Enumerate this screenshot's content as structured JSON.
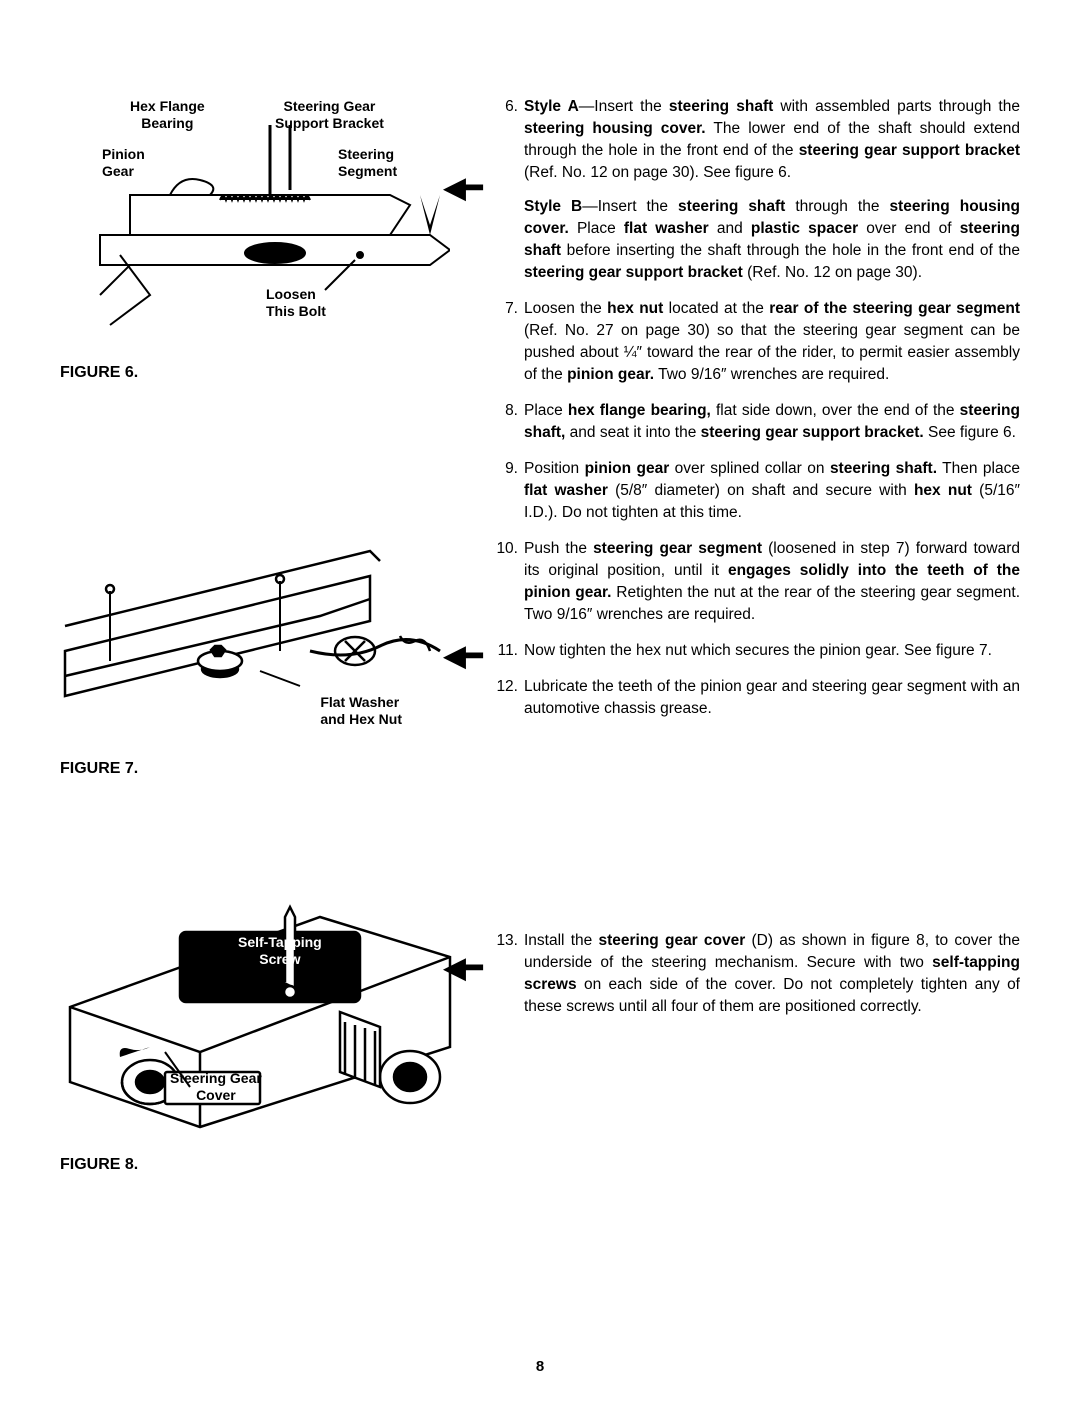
{
  "page_number": "8",
  "figures": {
    "fig6": {
      "caption": "FIGURE 6.",
      "labels": {
        "hex_flange_bearing": "Hex Flange\nBearing",
        "steering_gear_support": "Steering Gear\nSupport Bracket",
        "pinion_gear": "Pinion\nGear",
        "steering_segment": "Steering\nSegment",
        "loosen_bolt": "Loosen\nThis Bolt"
      }
    },
    "fig7": {
      "caption": "FIGURE 7.",
      "labels": {
        "flat_washer": "Flat Washer\nand Hex Nut"
      }
    },
    "fig8": {
      "caption": "FIGURE 8.",
      "labels": {
        "self_tapping": "Self-Tapping\nScrew",
        "steering_gear_cover": "Steering Gear\nCover"
      }
    }
  },
  "steps": {
    "s6_num": "6.",
    "s6_styleA_pre": "Style A",
    "s6_styleA_body": "—Insert the ",
    "s6_styleA_b1": "steering shaft",
    "s6_styleA_body2": " with assembled parts through the ",
    "s6_styleA_b2": "steering housing cover.",
    "s6_styleA_body3": " The lower end of the shaft should extend through the hole in the front end of the ",
    "s6_styleA_b3": "steering gear support bracket",
    "s6_styleA_body4": " (Ref. No. 12 on page 30). See figure 6.",
    "s6_styleB_pre": "Style B",
    "s6_styleB_body": "—Insert the ",
    "s6_styleB_b1": "steering shaft",
    "s6_styleB_body2": " through the ",
    "s6_styleB_b2": "steering housing cover.",
    "s6_styleB_body3": " Place ",
    "s6_styleB_b3": "flat washer",
    "s6_styleB_body4": " and ",
    "s6_styleB_b4": "plastic spacer",
    "s6_styleB_body5": " over end of ",
    "s6_styleB_b5": "steering shaft",
    "s6_styleB_body6": " before inserting the shaft through the hole in the front end of the ",
    "s6_styleB_b6": "steering gear support bracket",
    "s6_styleB_body7": " (Ref. No. 12 on page 30).",
    "s7_num": "7.",
    "s7_body": "Loosen the ",
    "s7_b1": "hex nut",
    "s7_body2": " located at the ",
    "s7_b2": "rear of the steering gear segment",
    "s7_body3": " (Ref. No. 27 on page 30) so that the steering gear segment can be pushed about ¼″ toward the rear of the rider, to permit easier assembly of the ",
    "s7_b3": "pinion gear.",
    "s7_body4": " Two 9/16″ wrenches are required.",
    "s8_num": "8.",
    "s8_body": "Place ",
    "s8_b1": "hex flange bearing,",
    "s8_body2": " flat side down, over the end of the ",
    "s8_b2": "steering shaft,",
    "s8_body3": " and seat it into the ",
    "s8_b3": "steering gear support bracket.",
    "s8_body4": " See figure 6.",
    "s9_num": "9.",
    "s9_body": "Position ",
    "s9_b1": "pinion gear",
    "s9_body2": " over splined collar on ",
    "s9_b2": "steering shaft.",
    "s9_body3": " Then place ",
    "s9_b3": "flat washer",
    "s9_body4": " (5/8″ diameter) on shaft and secure with ",
    "s9_b4": "hex nut",
    "s9_body5": " (5/16″ I.D.). Do not tighten at this time.",
    "s10_num": "10.",
    "s10_body": "Push the ",
    "s10_b1": "steering gear segment",
    "s10_body2": " (loosened in step 7) forward toward its original position, until it ",
    "s10_b2": "engages solidly into the teeth of the pinion gear.",
    "s10_body3": " Retighten the nut at the rear of the steering gear segment. Two 9/16″ wrenches are required.",
    "s11_num": "11.",
    "s11_body": "Now tighten the hex nut which secures the pinion gear. See figure 7.",
    "s12_num": "12.",
    "s12_body": "Lubricate the teeth of the pinion gear and steering gear segment with an automotive chassis grease.",
    "s13_num": "13.",
    "s13_body": "Install the ",
    "s13_b1": "steering gear cover",
    "s13_body2": " (D) as shown in figure 8, to cover the underside of the steering mechanism. Secure with two ",
    "s13_b2": "self-tapping screws",
    "s13_body3": " on each side of the cover. Do not completely tighten any of these screws until all four of them are positioned correctly."
  }
}
